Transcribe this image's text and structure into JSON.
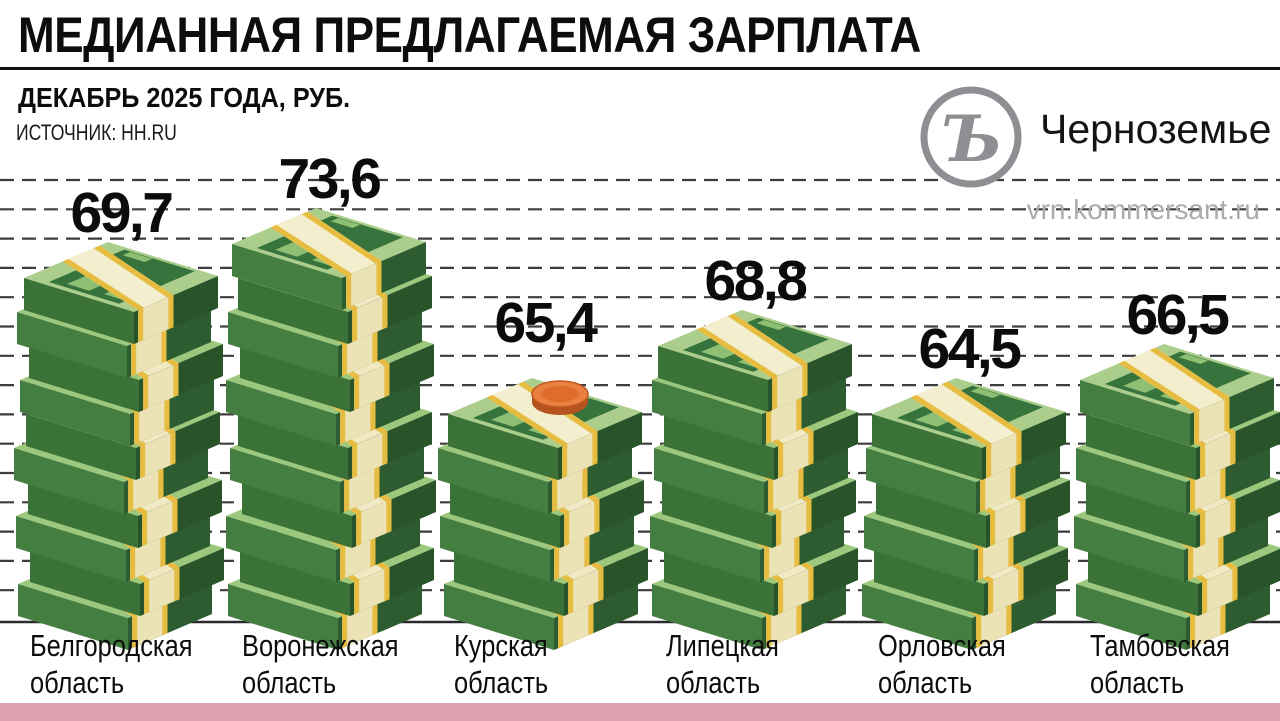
{
  "header": {
    "title": "МЕДИАННАЯ ПРЕДЛАГАЕМАЯ ЗАРПЛАТА",
    "subtitle": "ДЕКАБРЬ 2025 ГОДА, РУБ.",
    "source": "ИСТОЧНИК: HH.RU"
  },
  "branding": {
    "edition": "Черноземье",
    "watermark": "vrn.kommersant.ru",
    "logo_glyph": "Ъ"
  },
  "chart_data": {
    "type": "bar",
    "title": "МЕДИАННАЯ ПРЕДЛАГАЕМАЯ ЗАРПЛАТА",
    "subtitle": "ДЕКАБРЬ 2025 ГОДА, РУБ.",
    "source": "HH.RU",
    "categories": [
      "Белгородская область",
      "Воронежская область",
      "Курская область",
      "Липецкая область",
      "Орловская область",
      "Тамбовская область"
    ],
    "category_lines": [
      [
        "Белгородская",
        "область"
      ],
      [
        "Воронежская",
        "область"
      ],
      [
        "Курская",
        "область"
      ],
      [
        "Липецкая",
        "область"
      ],
      [
        "Орловская",
        "область"
      ],
      [
        "Тамбовская",
        "область"
      ]
    ],
    "values": [
      69.7,
      73.6,
      65.4,
      68.8,
      64.5,
      66.5
    ],
    "value_labels": [
      "69,7",
      "73,6",
      "65,4",
      "68,8",
      "64,5",
      "66,5"
    ],
    "ylim": [
      0,
      80
    ],
    "grid": "dashed horizontal lines",
    "legend_position": "none",
    "bar_style": "isometric stacks of banknote bundles",
    "bundle_counts": [
      10,
      11,
      6,
      8,
      6,
      7
    ],
    "coin_on_category_index": 2
  },
  "style": {
    "accent_pink": "#dfa1af",
    "money_green_top": "#abce8d",
    "money_green_top_sliver": "#9cc87e",
    "money_green_front": "#447e40",
    "money_green_front_alt": "#3b7237",
    "money_green_side": "#2d5c30",
    "money_green_side_alt": "#295329",
    "note_motif_dark": "#37743d",
    "note_motif_light": "#8fbf72",
    "band_cream_top": "#f3eecd",
    "band_cream_front": "#ebe3b6",
    "band_gold": "#e6bc41",
    "coin_orange": "#ea8040",
    "coin_orange_dark": "#b5521e",
    "grid_color": "#3d3d3d",
    "axis_color": "#2b2b2b",
    "text_color": "#0c0c0c",
    "logo_gray": "#8f8f93",
    "watermark_gray": "#ababab"
  }
}
